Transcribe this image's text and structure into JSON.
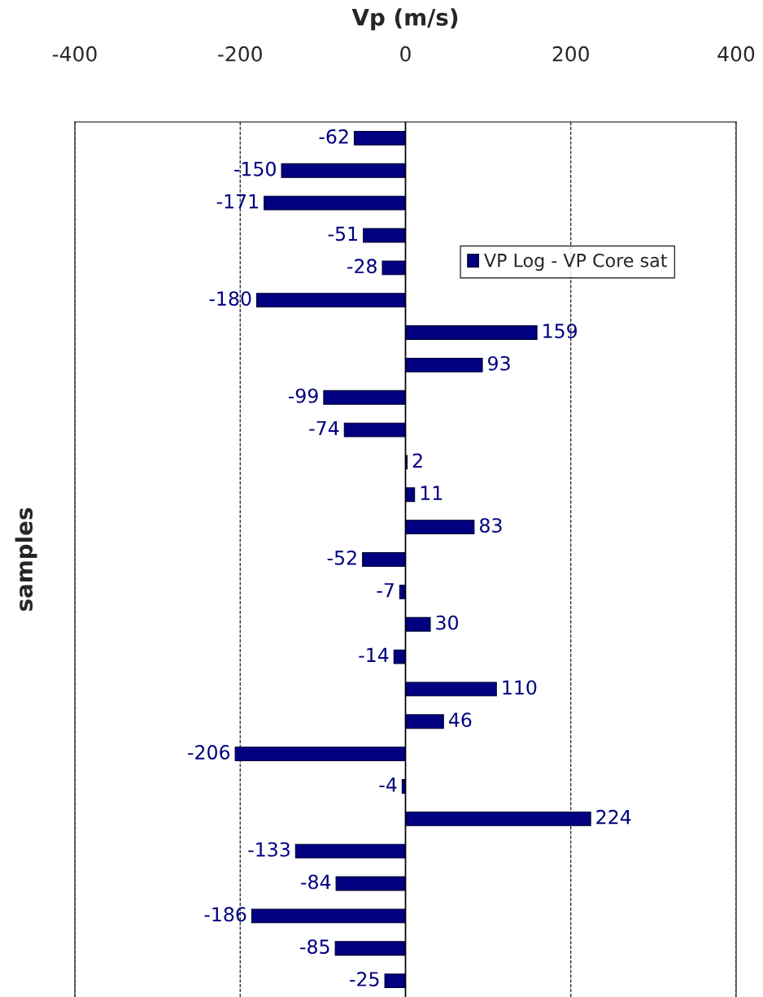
{
  "chart_data": {
    "type": "bar",
    "orientation": "horizontal",
    "xlabel": "Vp (m/s)",
    "ylabel": "samples",
    "categories": [
      null,
      null,
      null,
      null,
      null,
      null,
      null,
      null,
      null,
      null,
      null,
      null,
      null,
      null,
      null,
      null,
      null,
      null,
      null,
      null,
      null,
      null,
      null,
      null,
      null,
      null,
      null
    ],
    "series": [
      {
        "name": "VP Log - VP Core sat",
        "color": "#000080",
        "values": [
          -62,
          -150,
          -171,
          -51,
          -28,
          -180,
          159,
          93,
          -99,
          -74,
          2,
          11,
          83,
          -52,
          -7,
          30,
          -14,
          110,
          46,
          -206,
          -4,
          224,
          -133,
          -84,
          -186,
          -85,
          -25
        ]
      }
    ],
    "xlim": [
      -400,
      400
    ],
    "xticks": [
      -400,
      -200,
      0,
      200,
      400
    ],
    "grid": "x",
    "legend": "top right",
    "data_labels": true
  }
}
